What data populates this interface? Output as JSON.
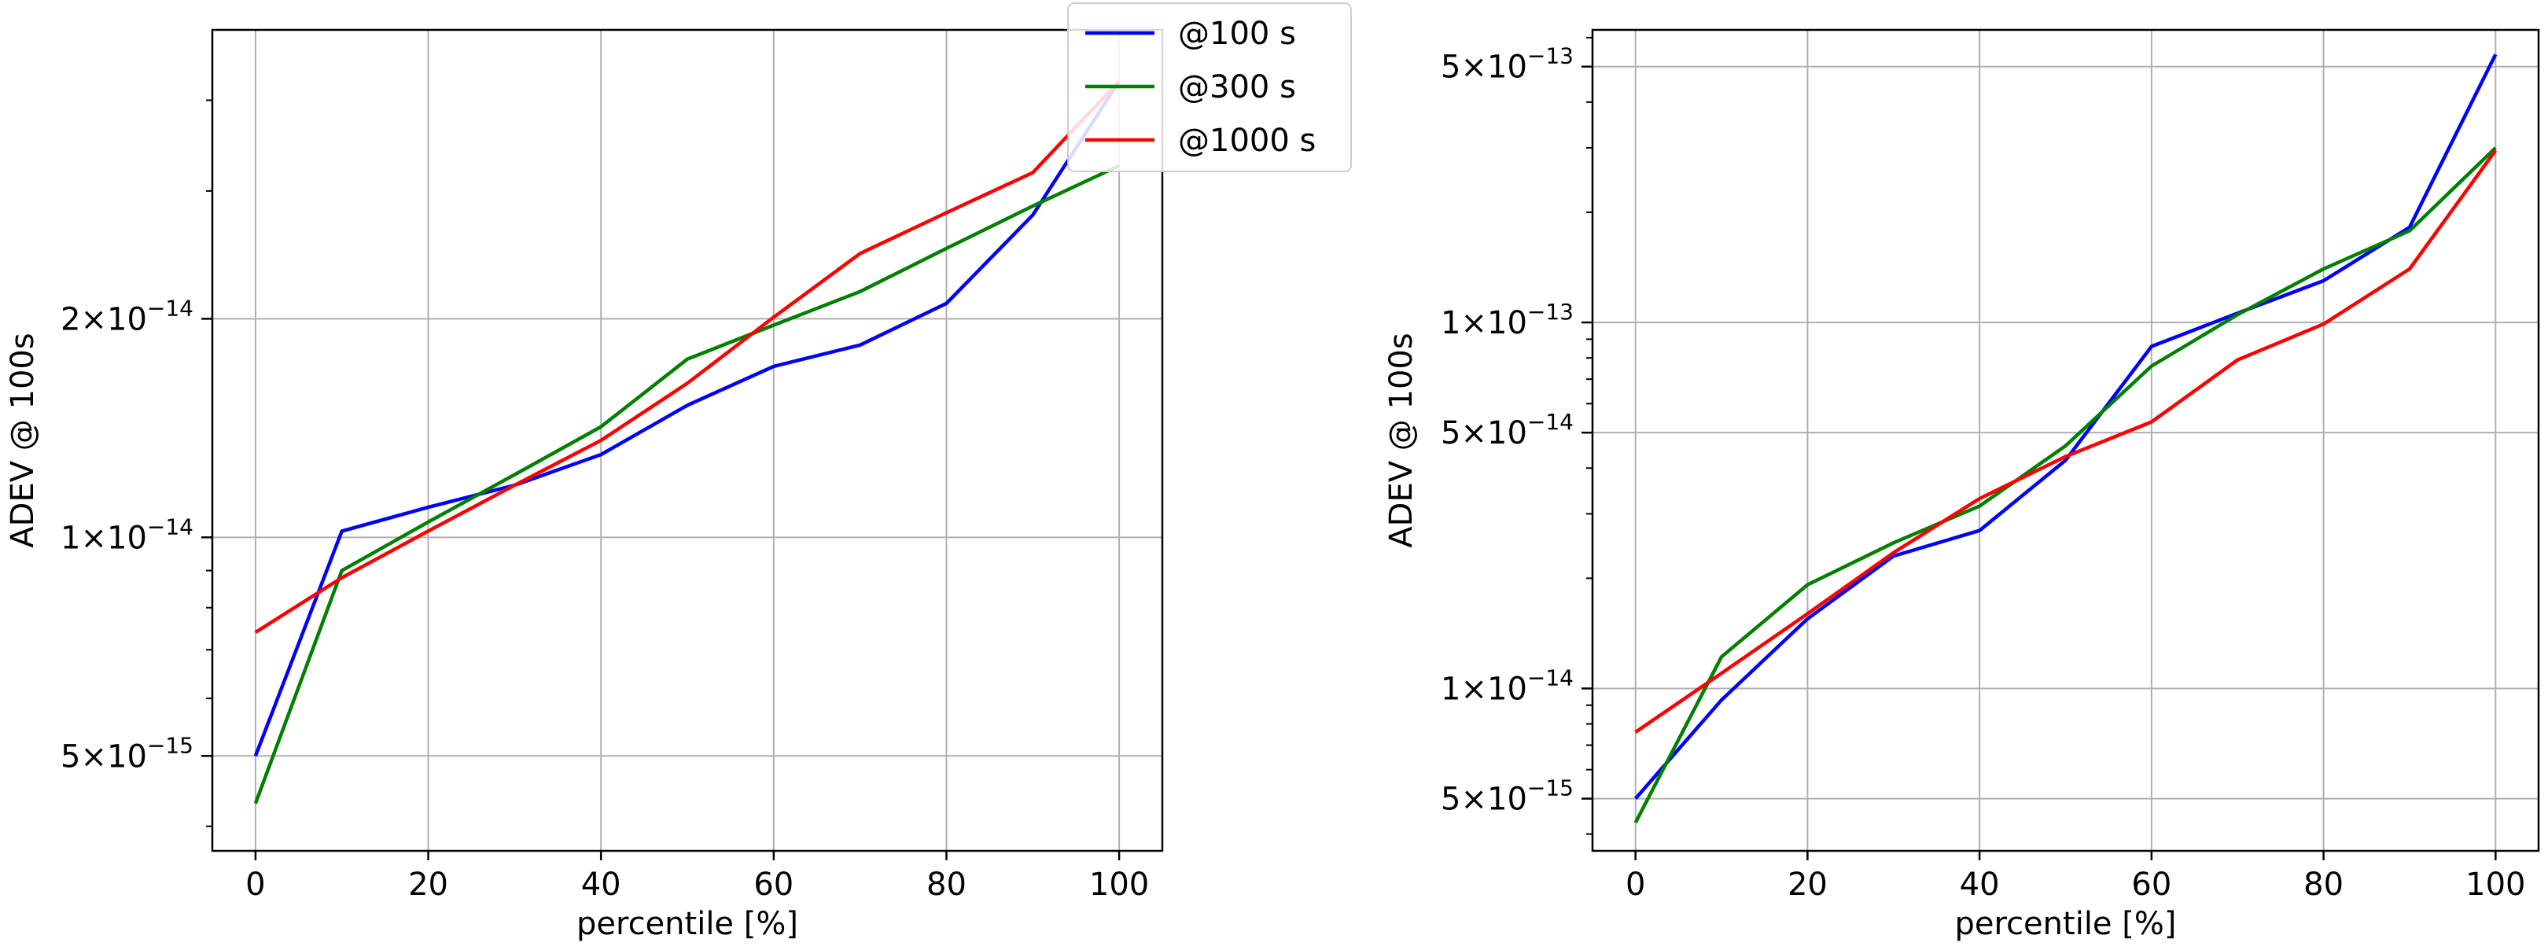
{
  "chart_data": [
    {
      "type": "line",
      "title": "",
      "xlabel": "percentile [%]",
      "ylabel": "ADEV @ 100s",
      "yscale": "log",
      "xlim": [
        -5,
        105
      ],
      "ylim": [
        3.7e-15,
        5e-14
      ],
      "grid": true,
      "xticks": [
        {
          "value": 0,
          "label": "0"
        },
        {
          "value": 20,
          "label": "20"
        },
        {
          "value": 40,
          "label": "40"
        },
        {
          "value": 60,
          "label": "60"
        },
        {
          "value": 80,
          "label": "80"
        },
        {
          "value": 100,
          "label": "100"
        }
      ],
      "yticks": [
        {
          "value": 5e-15,
          "mant": "5",
          "exp": "−15"
        },
        {
          "value": 1e-14,
          "mant": "1",
          "exp": "−14"
        },
        {
          "value": 2e-14,
          "mant": "2",
          "exp": "−14"
        }
      ],
      "legend": {
        "placement": "top-right",
        "entries": [
          "@100 s",
          "@300 s",
          "@1000 s"
        ]
      },
      "x": [
        0,
        10,
        20,
        30,
        40,
        50,
        60,
        70,
        80,
        90,
        100
      ],
      "series": [
        {
          "name": "@100 s",
          "color": "#0000ff",
          "values": [
            5e-15,
            1.02e-14,
            1.1e-14,
            1.18e-14,
            1.3e-14,
            1.52e-14,
            1.72e-14,
            1.84e-14,
            2.1e-14,
            2.78e-14,
            4.25e-14
          ]
        },
        {
          "name": "@300 s",
          "color": "#008000",
          "values": [
            4.3e-15,
            9e-15,
            1.05e-14,
            1.22e-14,
            1.42e-14,
            1.76e-14,
            1.96e-14,
            2.18e-14,
            2.5e-14,
            2.86e-14,
            3.25e-14
          ]
        },
        {
          "name": "@1000 s",
          "color": "#ff0000",
          "values": [
            7.4e-15,
            8.8e-15,
            1.02e-14,
            1.18e-14,
            1.36e-14,
            1.63e-14,
            2.01e-14,
            2.46e-14,
            2.8e-14,
            3.18e-14,
            4.25e-14
          ]
        }
      ]
    },
    {
      "type": "line",
      "title": "",
      "xlabel": "percentile [%]",
      "ylabel": "ADEV @ 100s",
      "yscale": "log",
      "xlim": [
        -5,
        105
      ],
      "ylim": [
        3.6e-15,
        6.3e-13
      ],
      "grid": true,
      "xticks": [
        {
          "value": 0,
          "label": "0"
        },
        {
          "value": 20,
          "label": "20"
        },
        {
          "value": 40,
          "label": "40"
        },
        {
          "value": 60,
          "label": "60"
        },
        {
          "value": 80,
          "label": "80"
        },
        {
          "value": 100,
          "label": "100"
        }
      ],
      "yticks": [
        {
          "value": 5e-15,
          "mant": "5",
          "exp": "−15"
        },
        {
          "value": 1e-14,
          "mant": "1",
          "exp": "−14"
        },
        {
          "value": 5e-14,
          "mant": "5",
          "exp": "−14"
        },
        {
          "value": 1e-13,
          "mant": "1",
          "exp": "−13"
        },
        {
          "value": 5e-13,
          "mant": "5",
          "exp": "−13"
        }
      ],
      "x": [
        0,
        10,
        20,
        30,
        40,
        50,
        60,
        70,
        80,
        90,
        100
      ],
      "series": [
        {
          "name": "@100 s",
          "color": "#0000ff",
          "values": [
            5e-15,
            9.3e-15,
            1.55e-14,
            2.3e-14,
            2.7e-14,
            4.2e-14,
            8.6e-14,
            1.06e-13,
            1.3e-13,
            1.82e-13,
            5.4e-13
          ]
        },
        {
          "name": "@300 s",
          "color": "#008000",
          "values": [
            4.3e-15,
            1.22e-14,
            1.92e-14,
            2.5e-14,
            3.15e-14,
            4.6e-14,
            7.6e-14,
            1.05e-13,
            1.4e-13,
            1.78e-13,
            3e-13
          ]
        },
        {
          "name": "@1000 s",
          "color": "#ff0000",
          "values": [
            7.6e-15,
            1.1e-14,
            1.6e-14,
            2.35e-14,
            3.3e-14,
            4.3e-14,
            5.35e-14,
            7.9e-14,
            9.9e-14,
            1.4e-13,
            2.95e-13
          ]
        }
      ]
    }
  ]
}
